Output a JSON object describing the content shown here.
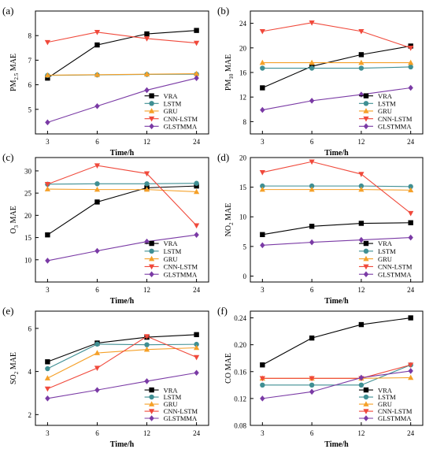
{
  "colors": {
    "VRA": "#000000",
    "LSTM": "#3f8f93",
    "GRU": "#f5a028",
    "CNN-LSTM": "#f0493b",
    "GLSTMMA": "#7a3aa5"
  },
  "chart_data": [
    {
      "type": "line",
      "panel_label": "(a)",
      "xlabel": "Time/h",
      "ylabel_main": "PM",
      "ylabel_sub": "2.5",
      "ylabel_tail": " MAE",
      "categories": [
        "3",
        "6",
        "12",
        "24"
      ],
      "ylim": [
        4,
        9
      ],
      "yticks": [
        5,
        6,
        7,
        8
      ],
      "series": [
        {
          "name": "VRA",
          "marker": "square",
          "values": [
            6.27,
            7.62,
            8.07,
            8.21
          ]
        },
        {
          "name": "LSTM",
          "marker": "circle",
          "values": [
            6.38,
            6.4,
            6.42,
            6.43
          ]
        },
        {
          "name": "GRU",
          "marker": "triangle-up",
          "values": [
            6.39,
            6.41,
            6.43,
            6.45
          ]
        },
        {
          "name": "CNN-LSTM",
          "marker": "triangle-down",
          "values": [
            7.73,
            8.14,
            7.88,
            7.7
          ]
        },
        {
          "name": "GLSTMMA",
          "marker": "diamond",
          "values": [
            4.47,
            5.13,
            5.78,
            6.27
          ]
        }
      ],
      "legend": "bottom-right"
    },
    {
      "type": "line",
      "panel_label": "(b)",
      "xlabel": "Time/h",
      "ylabel_main": "PM",
      "ylabel_sub": "10",
      "ylabel_tail": " MAE",
      "categories": [
        "3",
        "6",
        "12",
        "24"
      ],
      "ylim": [
        6,
        26
      ],
      "yticks": [
        8,
        12,
        16,
        20,
        24
      ],
      "series": [
        {
          "name": "VRA",
          "marker": "square",
          "values": [
            13.5,
            17.0,
            18.9,
            20.3
          ]
        },
        {
          "name": "LSTM",
          "marker": "circle",
          "values": [
            16.7,
            16.7,
            16.7,
            16.9
          ]
        },
        {
          "name": "GRU",
          "marker": "triangle-up",
          "values": [
            17.6,
            17.6,
            17.6,
            17.6
          ]
        },
        {
          "name": "CNN-LSTM",
          "marker": "triangle-down",
          "values": [
            22.7,
            24.1,
            22.7,
            20.0
          ]
        },
        {
          "name": "GLSTMMA",
          "marker": "diamond",
          "values": [
            9.9,
            11.4,
            12.4,
            13.5
          ]
        }
      ],
      "legend": "bottom-right"
    },
    {
      "type": "line",
      "panel_label": "(c)",
      "xlabel": "Time/h",
      "ylabel_main": "O",
      "ylabel_sub": "3",
      "ylabel_tail": " MAE",
      "categories": [
        "3",
        "6",
        "12",
        "24"
      ],
      "ylim": [
        5,
        33
      ],
      "yticks": [
        10,
        15,
        20,
        25,
        30
      ],
      "series": [
        {
          "name": "VRA",
          "marker": "square",
          "values": [
            15.6,
            23.0,
            26.2,
            26.6
          ]
        },
        {
          "name": "LSTM",
          "marker": "circle",
          "values": [
            27.0,
            27.1,
            27.1,
            27.2
          ]
        },
        {
          "name": "GRU",
          "marker": "triangle-up",
          "values": [
            25.9,
            25.8,
            25.8,
            25.3
          ]
        },
        {
          "name": "CNN-LSTM",
          "marker": "triangle-down",
          "values": [
            27.0,
            31.2,
            29.4,
            17.7
          ]
        },
        {
          "name": "GLSTMMA",
          "marker": "diamond",
          "values": [
            9.8,
            12.0,
            14.1,
            15.6
          ]
        }
      ],
      "legend": "bottom-right"
    },
    {
      "type": "line",
      "panel_label": "(d)",
      "xlabel": "Time/h",
      "ylabel_main": "NO",
      "ylabel_sub": "2",
      "ylabel_tail": " MAE",
      "categories": [
        "3",
        "6",
        "12",
        "24"
      ],
      "ylim": [
        -1,
        20
      ],
      "yticks": [
        0,
        5,
        10,
        15,
        20
      ],
      "series": [
        {
          "name": "VRA",
          "marker": "square",
          "values": [
            7.0,
            8.4,
            8.9,
            9.0
          ]
        },
        {
          "name": "LSTM",
          "marker": "circle",
          "values": [
            15.2,
            15.2,
            15.2,
            15.1
          ]
        },
        {
          "name": "GRU",
          "marker": "triangle-up",
          "values": [
            14.6,
            14.6,
            14.6,
            14.5
          ]
        },
        {
          "name": "CNN-LSTM",
          "marker": "triangle-down",
          "values": [
            17.5,
            19.3,
            17.2,
            10.6
          ]
        },
        {
          "name": "GLSTMMA",
          "marker": "diamond",
          "values": [
            5.2,
            5.7,
            6.1,
            6.5
          ]
        }
      ],
      "legend": "bottom-right"
    },
    {
      "type": "line",
      "panel_label": "(e)",
      "xlabel": "Time/h",
      "ylabel_main": "SO",
      "ylabel_sub": "2",
      "ylabel_tail": " MAE",
      "categories": [
        "3",
        "6",
        "12",
        "24"
      ],
      "ylim": [
        1.5,
        6.8
      ],
      "yticks": [
        2,
        4,
        6
      ],
      "series": [
        {
          "name": "VRA",
          "marker": "square",
          "values": [
            4.45,
            5.32,
            5.59,
            5.71
          ]
        },
        {
          "name": "LSTM",
          "marker": "circle",
          "values": [
            4.13,
            5.27,
            5.24,
            5.26
          ]
        },
        {
          "name": "GRU",
          "marker": "triangle-up",
          "values": [
            3.69,
            4.86,
            5.02,
            5.1
          ]
        },
        {
          "name": "CNN-LSTM",
          "marker": "triangle-down",
          "values": [
            3.2,
            4.16,
            5.63,
            4.66
          ]
        },
        {
          "name": "GLSTMMA",
          "marker": "diamond",
          "values": [
            2.75,
            3.14,
            3.55,
            3.94
          ]
        }
      ],
      "legend": "bottom-right"
    },
    {
      "type": "line",
      "panel_label": "(f)",
      "xlabel": "Time/h",
      "ylabel_main": "CO",
      "ylabel_sub": "",
      "ylabel_tail": " MAE",
      "categories": [
        "3",
        "6",
        "12",
        "24"
      ],
      "ylim": [
        0.08,
        0.25
      ],
      "yticks": [
        0.08,
        0.12,
        0.16,
        0.2,
        0.24
      ],
      "ytick_labels": [
        "0.08",
        "0.12",
        "0.16",
        "0.20",
        "0.24"
      ],
      "series": [
        {
          "name": "VRA",
          "marker": "square",
          "values": [
            0.17,
            0.21,
            0.23,
            0.24
          ]
        },
        {
          "name": "LSTM",
          "marker": "circle",
          "values": [
            0.14,
            0.14,
            0.14,
            0.17
          ]
        },
        {
          "name": "GRU",
          "marker": "triangle-up",
          "values": [
            0.15,
            0.15,
            0.15,
            0.151
          ]
        },
        {
          "name": "CNN-LSTM",
          "marker": "triangle-down",
          "values": [
            0.15,
            0.15,
            0.15,
            0.17
          ]
        },
        {
          "name": "GLSTMMA",
          "marker": "diamond",
          "values": [
            0.12,
            0.13,
            0.151,
            0.161
          ]
        }
      ],
      "legend": "bottom-right"
    }
  ]
}
